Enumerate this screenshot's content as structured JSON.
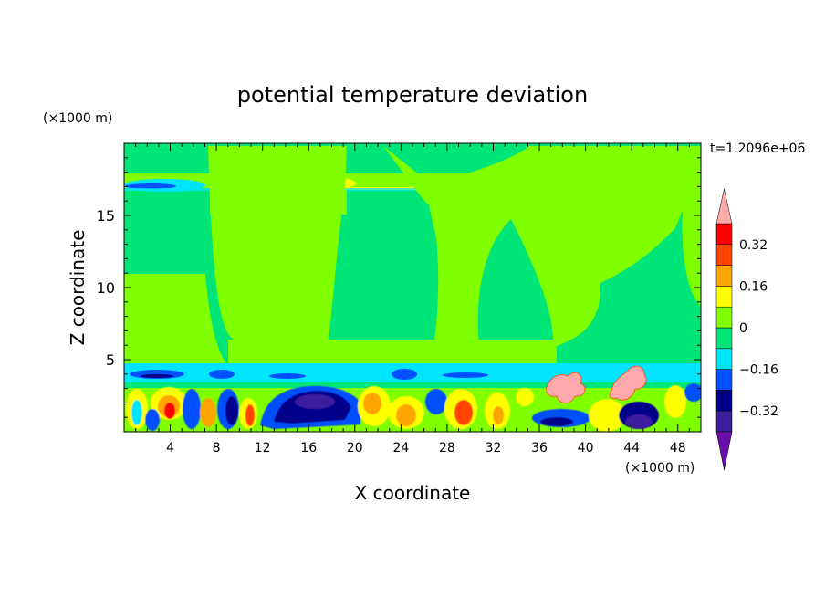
{
  "chart_data": {
    "type": "heatmap",
    "title": "potential temperature deviation",
    "xlabel": "X coordinate",
    "ylabel": "Z coordinate",
    "x_unit": "(×1000 m)",
    "y_unit": "(×1000 m)",
    "time_label": "t=1.2096e+06",
    "xlim": [
      0,
      50
    ],
    "ylim": [
      0,
      20
    ],
    "x_ticks": [
      4,
      8,
      12,
      16,
      20,
      24,
      28,
      32,
      36,
      40,
      44,
      48
    ],
    "y_ticks": [
      5,
      10,
      15
    ],
    "colorbar": {
      "levels": [
        -0.4,
        -0.32,
        -0.24,
        -0.16,
        -0.08,
        0,
        0.08,
        0.16,
        0.24,
        0.32,
        0.4
      ],
      "tick_labels": [
        0.32,
        0.16,
        0,
        -0.16,
        -0.32
      ],
      "colors": [
        "#6a0dad",
        "#3a1e9e",
        "#00008b",
        "#0050ff",
        "#00e5ff",
        "#00e578",
        "#7fff00",
        "#ffff00",
        "#ffa500",
        "#ff4500",
        "#ff0000",
        "#ffaaaa"
      ],
      "extend": "both"
    },
    "grid": false,
    "legend": "colorbar-right"
  }
}
